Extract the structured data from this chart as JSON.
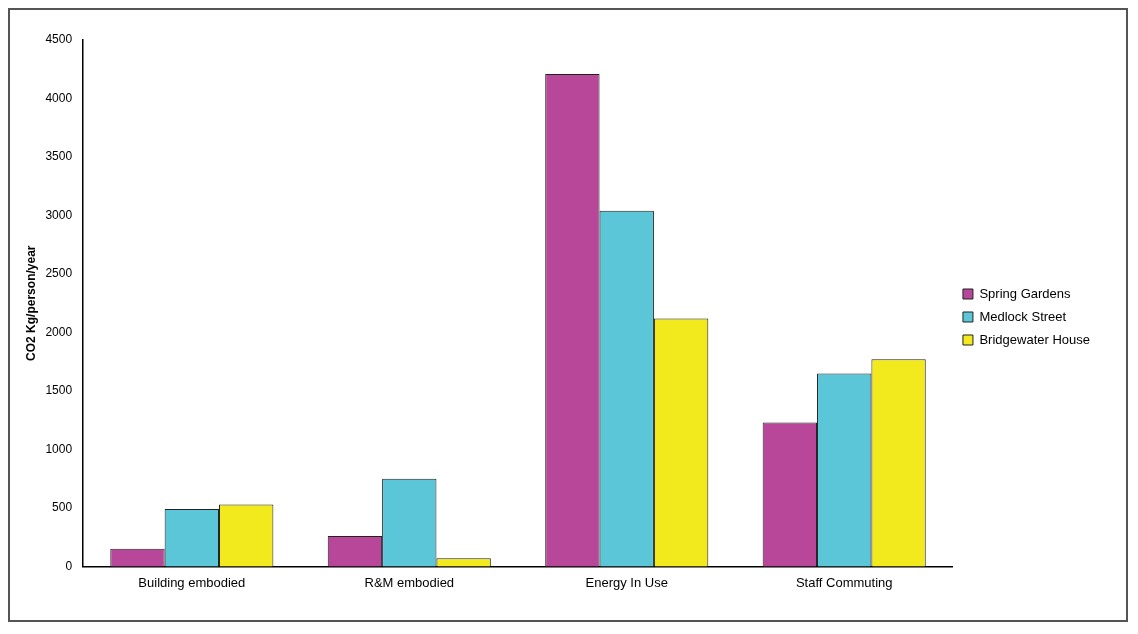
{
  "chart_data": {
    "type": "bar",
    "ylabel": "CO2 Kg/person/year",
    "categories": [
      "Building embodied",
      "R&M embodied",
      "Energy In Use",
      "Staff Commuting"
    ],
    "series": [
      {
        "name": "Spring Gardens",
        "color": "#b8479a",
        "values": [
          150,
          260,
          4210,
          1230
        ]
      },
      {
        "name": "Medlock Street",
        "color": "#5bc6d8",
        "values": [
          490,
          750,
          3040,
          1650
        ]
      },
      {
        "name": "Bridgewater House",
        "color": "#f2ea1c",
        "values": [
          530,
          70,
          2120,
          1770
        ]
      }
    ],
    "ylim": [
      0,
      4500
    ],
    "yticks": [
      0,
      500,
      1000,
      1500,
      2000,
      2500,
      3000,
      3500,
      4000,
      4500
    ],
    "grid": false,
    "legend": "right"
  }
}
